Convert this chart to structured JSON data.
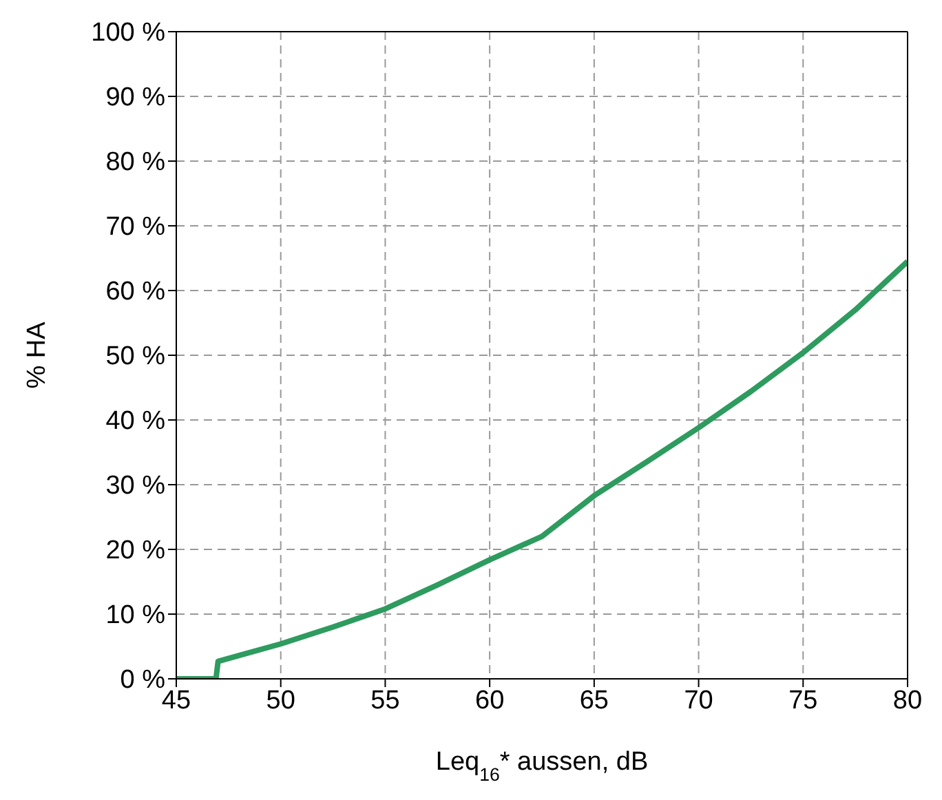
{
  "chart_data": {
    "type": "line",
    "xlabel": "Leq$_{16}$* aussen, dB",
    "ylabel": "% HA",
    "xlim": [
      45,
      80
    ],
    "xticks": [
      45,
      50,
      55,
      60,
      65,
      70,
      75,
      80
    ],
    "ylim": [
      0,
      100
    ],
    "yticks": [
      {
        "value": 0,
        "label": "0 %"
      },
      {
        "value": 10,
        "label": "10 %"
      },
      {
        "value": 20,
        "label": "20 %"
      },
      {
        "value": 30,
        "label": "30 %"
      },
      {
        "value": 40,
        "label": "40 %"
      },
      {
        "value": 50,
        "label": "50 %"
      },
      {
        "value": 60,
        "label": "60 %"
      },
      {
        "value": 70,
        "label": "70 %"
      },
      {
        "value": 80,
        "label": "80 %"
      },
      {
        "value": 90,
        "label": "90 %"
      },
      {
        "value": 100,
        "label": "100 %"
      }
    ],
    "grid": true,
    "marker": "none",
    "line_style": "solid",
    "series": [
      {
        "color": "#2e9b5f",
        "x": [
          45,
          46.9,
          47,
          48,
          50,
          52.5,
          55,
          57.5,
          60,
          62.5,
          65,
          67.5,
          70,
          72.5,
          75,
          77.5,
          80
        ],
        "values": [
          0,
          0,
          2.7,
          3.6,
          5.4,
          8,
          10.8,
          14.5,
          18.4,
          22,
          28.3,
          33.5,
          38.8,
          44.4,
          50.4,
          57,
          64.5
        ]
      }
    ]
  }
}
